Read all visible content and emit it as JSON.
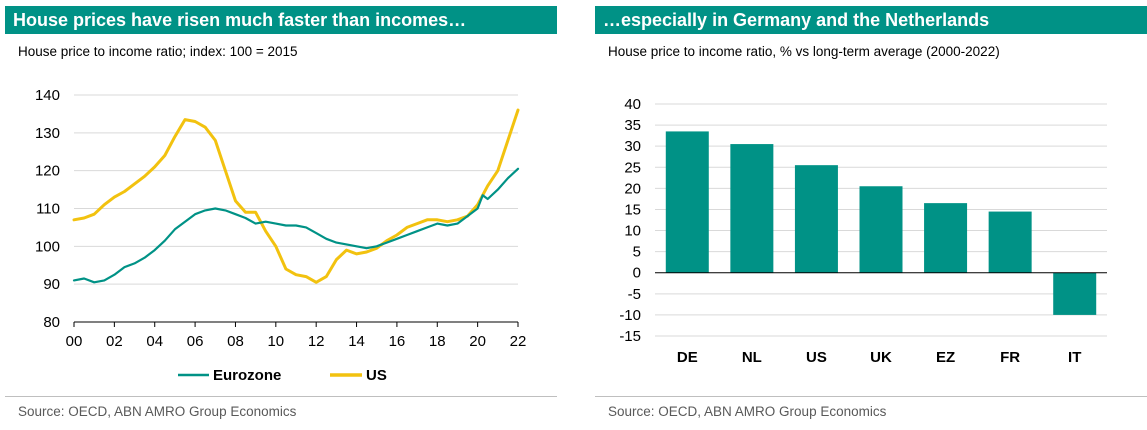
{
  "panels": [
    {
      "title": "House prices have risen much faster than incomes…",
      "subtitle": "House price to income ratio; index: 100 = 2015",
      "source": "Source: OECD, ABN AMRO Group Economics"
    },
    {
      "title": "…especially in Germany and the Netherlands",
      "subtitle": "House price to income ratio, % vs long-term average (2000-2022)",
      "source": "Source: OECD, ABN AMRO Group Economics"
    }
  ],
  "colors": {
    "accent": "#009286",
    "eurozone": "#009286",
    "us": "#f2c20f",
    "grid": "#d9d9d9"
  },
  "chart_data": [
    {
      "type": "line",
      "xlim": [
        2000,
        2022
      ],
      "ylim": [
        80,
        140
      ],
      "x_tick_labels": [
        "00",
        "02",
        "04",
        "06",
        "08",
        "10",
        "12",
        "14",
        "16",
        "18",
        "20",
        "22"
      ],
      "y_tick_labels": [
        "80",
        "90",
        "100",
        "110",
        "120",
        "130",
        "140"
      ],
      "grid": true,
      "legend_position": "bottom",
      "series": [
        {
          "name": "Eurozone",
          "color": "#009286",
          "x": [
            2000,
            2000.5,
            2001,
            2001.5,
            2002,
            2002.5,
            2003,
            2003.5,
            2004,
            2004.5,
            2005,
            2005.5,
            2006,
            2006.5,
            2007,
            2007.5,
            2008,
            2008.5,
            2009,
            2009.5,
            2010,
            2010.5,
            2011,
            2011.5,
            2012,
            2012.5,
            2013,
            2013.5,
            2014,
            2014.5,
            2015,
            2015.5,
            2016,
            2016.5,
            2017,
            2017.5,
            2018,
            2018.5,
            2019,
            2019.5,
            2020,
            2020.25,
            2020.5,
            2021,
            2021.5,
            2022
          ],
          "y": [
            91,
            91.5,
            90.5,
            91,
            92.5,
            94.5,
            95.5,
            97,
            99,
            101.5,
            104.5,
            106.5,
            108.5,
            109.5,
            110,
            109.5,
            108.5,
            107.5,
            106,
            106.5,
            106,
            105.5,
            105.5,
            105,
            103.5,
            102,
            101,
            100.5,
            100,
            99.5,
            100,
            101,
            102,
            103,
            104,
            105,
            106,
            105.5,
            106,
            108,
            110,
            113.5,
            112.5,
            115,
            118,
            120.5
          ]
        },
        {
          "name": "US",
          "color": "#f2c20f",
          "x": [
            2000,
            2000.5,
            2001,
            2001.5,
            2002,
            2002.5,
            2003,
            2003.5,
            2004,
            2004.5,
            2005,
            2005.5,
            2006,
            2006.5,
            2007,
            2007.5,
            2008,
            2008.5,
            2009,
            2009.5,
            2010,
            2010.5,
            2011,
            2011.5,
            2012,
            2012.5,
            2013,
            2013.5,
            2014,
            2014.5,
            2015,
            2015.5,
            2016,
            2016.5,
            2017,
            2017.5,
            2018,
            2018.5,
            2019,
            2019.5,
            2020,
            2020.5,
            2021,
            2021.5,
            2022
          ],
          "y": [
            107,
            107.5,
            108.5,
            111,
            113,
            114.5,
            116.5,
            118.5,
            121,
            124,
            129,
            133.5,
            133,
            131.5,
            128,
            120,
            112,
            109,
            109,
            104,
            100,
            94,
            92.5,
            92,
            90.5,
            92,
            96.5,
            99,
            98,
            98.5,
            99.5,
            101.5,
            103,
            105,
            106,
            107,
            107,
            106.5,
            107,
            108,
            111,
            116,
            120,
            128,
            136
          ]
        }
      ]
    },
    {
      "type": "bar",
      "categories": [
        "DE",
        "NL",
        "US",
        "UK",
        "EZ",
        "FR",
        "IT"
      ],
      "values": [
        33.5,
        30.5,
        25.5,
        20.5,
        16.5,
        14.5,
        -10
      ],
      "color": "#009286",
      "ylim": [
        -15,
        40
      ],
      "y_tick_labels": [
        "40",
        "35",
        "30",
        "25",
        "20",
        "15",
        "10",
        "5",
        "0",
        "-5",
        "-10",
        "-15"
      ],
      "grid": true
    }
  ]
}
